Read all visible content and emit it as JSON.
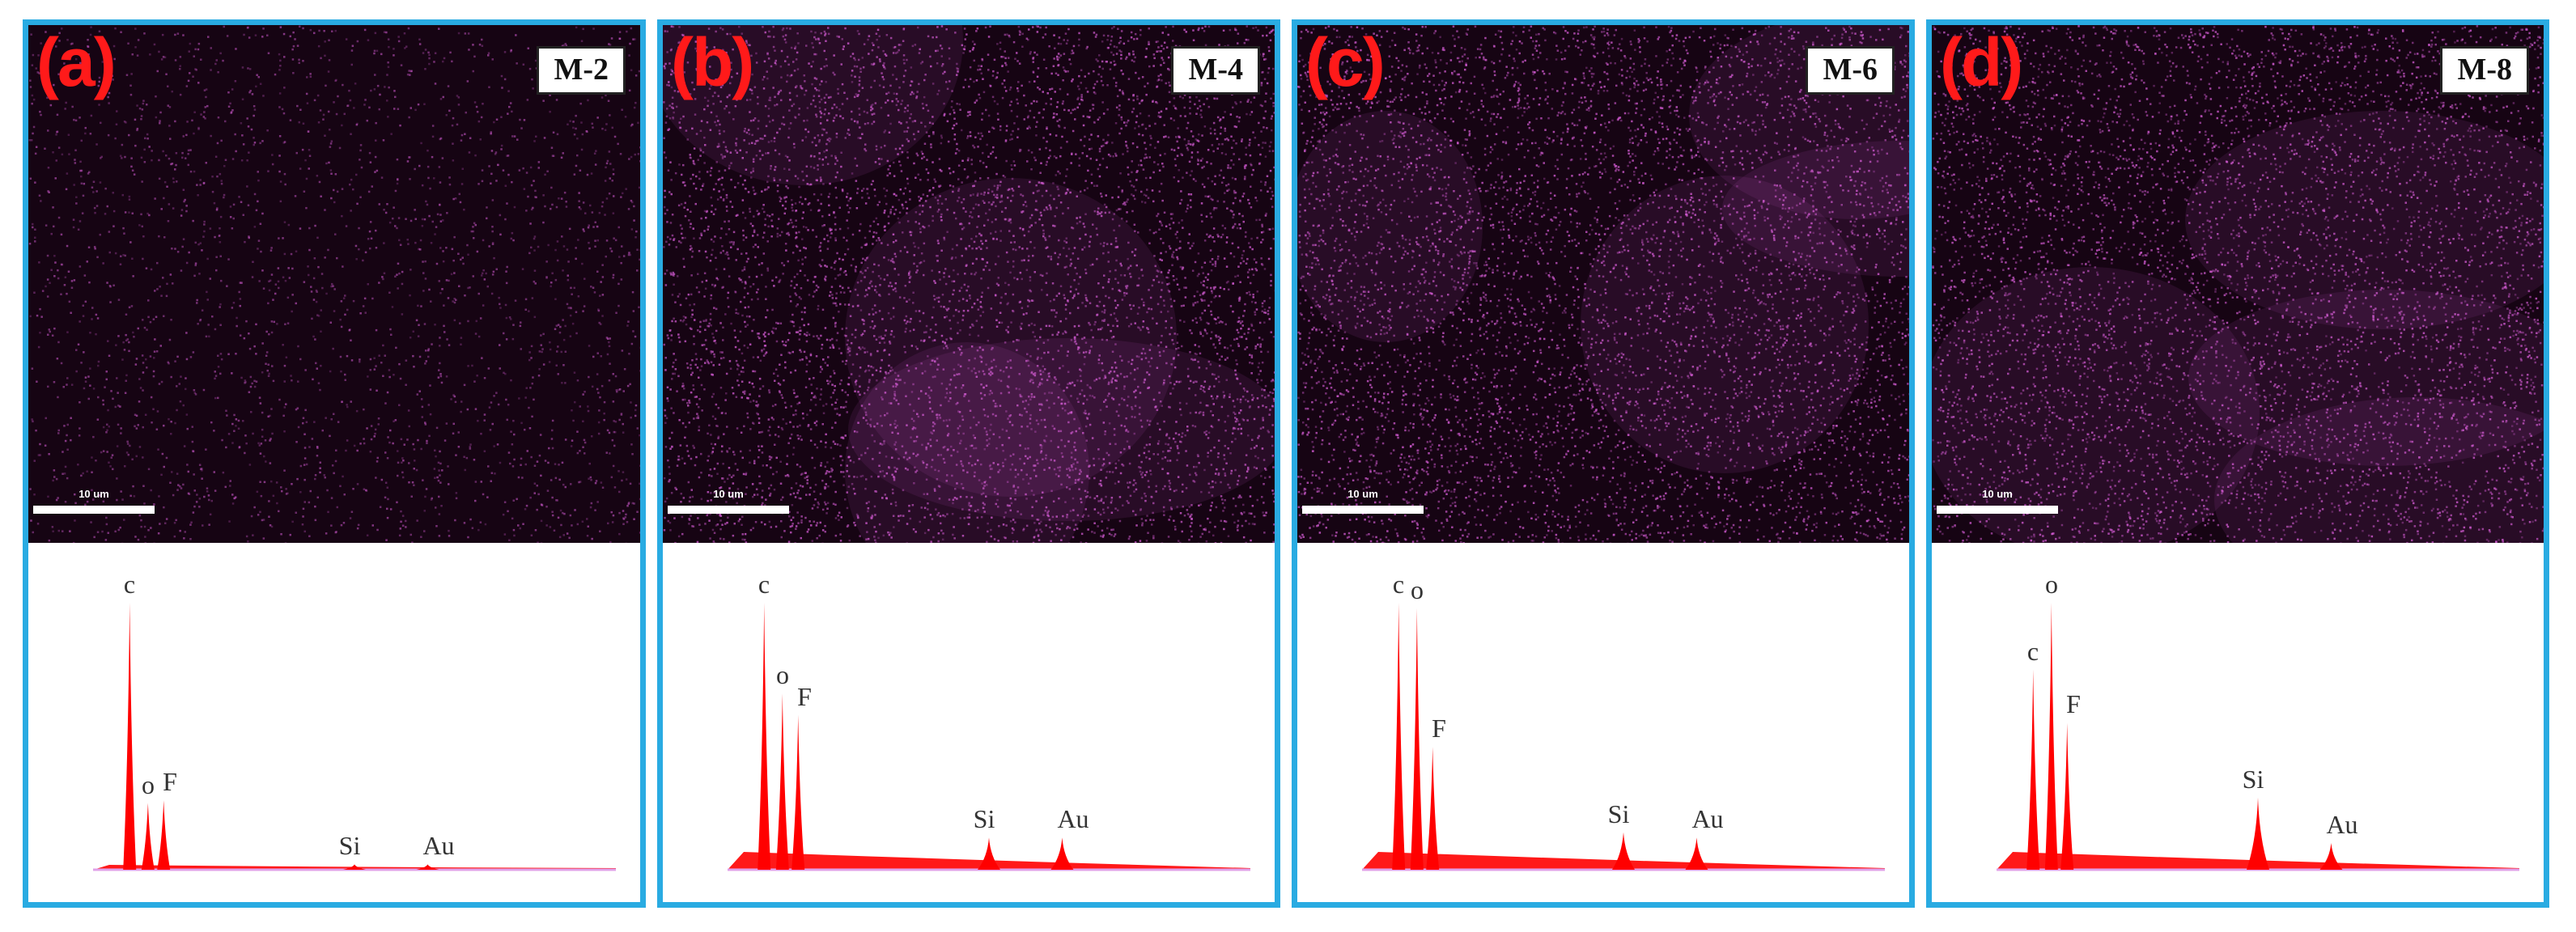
{
  "colors": {
    "panel_border": "#29abe2",
    "panel_letter": "#ff1a1a",
    "map_background": "#160413",
    "map_signal": "#d05ad0",
    "spectrum_fill": "#ff0000",
    "spectrum_baseline": "#e0a0e8"
  },
  "panels": [
    {
      "letter": "(a)",
      "sample": "M-2",
      "scalebar": "10 um",
      "map_density": "low",
      "peaks": [
        {
          "label": "c",
          "value": 1.0
        },
        {
          "label": "o",
          "value": 0.25
        },
        {
          "label": "F",
          "value": 0.26
        },
        {
          "label": "Si",
          "value": 0.02
        },
        {
          "label": "Au",
          "value": 0.02
        }
      ]
    },
    {
      "letter": "(b)",
      "sample": "M-4",
      "scalebar": "10 um",
      "map_density": "high",
      "peaks": [
        {
          "label": "c",
          "value": 1.0
        },
        {
          "label": "o",
          "value": 0.66
        },
        {
          "label": "F",
          "value": 0.58
        },
        {
          "label": "Si",
          "value": 0.12
        },
        {
          "label": "Au",
          "value": 0.12
        }
      ]
    },
    {
      "letter": "(c)",
      "sample": "M-6",
      "scalebar": "10 um",
      "map_density": "high",
      "peaks": [
        {
          "label": "c",
          "value": 1.0
        },
        {
          "label": "o",
          "value": 0.98
        },
        {
          "label": "F",
          "value": 0.46
        },
        {
          "label": "Si",
          "value": 0.14
        },
        {
          "label": "Au",
          "value": 0.12
        }
      ]
    },
    {
      "letter": "(d)",
      "sample": "M-8",
      "scalebar": "10 um",
      "map_density": "high",
      "peaks": [
        {
          "label": "c",
          "value": 0.75
        },
        {
          "label": "o",
          "value": 1.0
        },
        {
          "label": "F",
          "value": 0.55
        },
        {
          "label": "Si",
          "value": 0.27
        },
        {
          "label": "Au",
          "value": 0.1
        }
      ]
    }
  ]
}
